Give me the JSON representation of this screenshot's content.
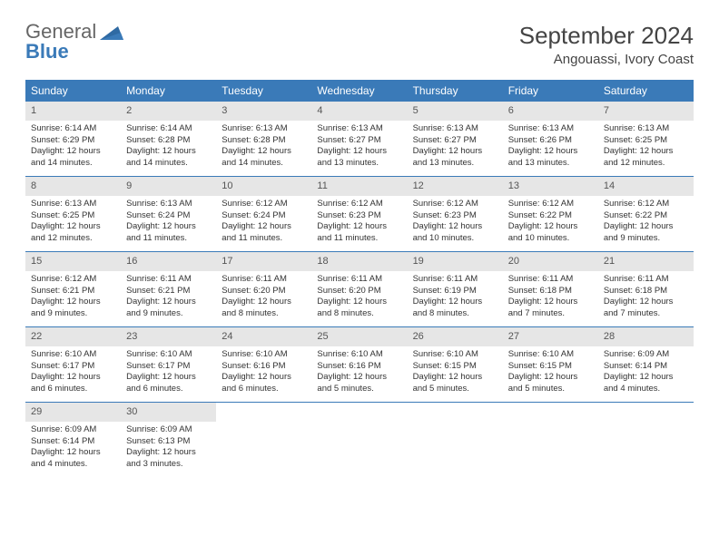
{
  "logo": {
    "text_general": "General",
    "text_blue": "Blue"
  },
  "title": "September 2024",
  "location": "Angouassi, Ivory Coast",
  "daynames": [
    "Sunday",
    "Monday",
    "Tuesday",
    "Wednesday",
    "Thursday",
    "Friday",
    "Saturday"
  ],
  "colors": {
    "header_bg": "#3a7ab8",
    "daynum_bg": "#e6e6e6",
    "rule": "#3a7ab8"
  },
  "grid": {
    "cols": 7,
    "rows": 5
  },
  "days": [
    {
      "n": 1,
      "sunrise": "6:14 AM",
      "sunset": "6:29 PM",
      "daylight": "12 hours and 14 minutes."
    },
    {
      "n": 2,
      "sunrise": "6:14 AM",
      "sunset": "6:28 PM",
      "daylight": "12 hours and 14 minutes."
    },
    {
      "n": 3,
      "sunrise": "6:13 AM",
      "sunset": "6:28 PM",
      "daylight": "12 hours and 14 minutes."
    },
    {
      "n": 4,
      "sunrise": "6:13 AM",
      "sunset": "6:27 PM",
      "daylight": "12 hours and 13 minutes."
    },
    {
      "n": 5,
      "sunrise": "6:13 AM",
      "sunset": "6:27 PM",
      "daylight": "12 hours and 13 minutes."
    },
    {
      "n": 6,
      "sunrise": "6:13 AM",
      "sunset": "6:26 PM",
      "daylight": "12 hours and 13 minutes."
    },
    {
      "n": 7,
      "sunrise": "6:13 AM",
      "sunset": "6:25 PM",
      "daylight": "12 hours and 12 minutes."
    },
    {
      "n": 8,
      "sunrise": "6:13 AM",
      "sunset": "6:25 PM",
      "daylight": "12 hours and 12 minutes."
    },
    {
      "n": 9,
      "sunrise": "6:13 AM",
      "sunset": "6:24 PM",
      "daylight": "12 hours and 11 minutes."
    },
    {
      "n": 10,
      "sunrise": "6:12 AM",
      "sunset": "6:24 PM",
      "daylight": "12 hours and 11 minutes."
    },
    {
      "n": 11,
      "sunrise": "6:12 AM",
      "sunset": "6:23 PM",
      "daylight": "12 hours and 11 minutes."
    },
    {
      "n": 12,
      "sunrise": "6:12 AM",
      "sunset": "6:23 PM",
      "daylight": "12 hours and 10 minutes."
    },
    {
      "n": 13,
      "sunrise": "6:12 AM",
      "sunset": "6:22 PM",
      "daylight": "12 hours and 10 minutes."
    },
    {
      "n": 14,
      "sunrise": "6:12 AM",
      "sunset": "6:22 PM",
      "daylight": "12 hours and 9 minutes."
    },
    {
      "n": 15,
      "sunrise": "6:12 AM",
      "sunset": "6:21 PM",
      "daylight": "12 hours and 9 minutes."
    },
    {
      "n": 16,
      "sunrise": "6:11 AM",
      "sunset": "6:21 PM",
      "daylight": "12 hours and 9 minutes."
    },
    {
      "n": 17,
      "sunrise": "6:11 AM",
      "sunset": "6:20 PM",
      "daylight": "12 hours and 8 minutes."
    },
    {
      "n": 18,
      "sunrise": "6:11 AM",
      "sunset": "6:20 PM",
      "daylight": "12 hours and 8 minutes."
    },
    {
      "n": 19,
      "sunrise": "6:11 AM",
      "sunset": "6:19 PM",
      "daylight": "12 hours and 8 minutes."
    },
    {
      "n": 20,
      "sunrise": "6:11 AM",
      "sunset": "6:18 PM",
      "daylight": "12 hours and 7 minutes."
    },
    {
      "n": 21,
      "sunrise": "6:11 AM",
      "sunset": "6:18 PM",
      "daylight": "12 hours and 7 minutes."
    },
    {
      "n": 22,
      "sunrise": "6:10 AM",
      "sunset": "6:17 PM",
      "daylight": "12 hours and 6 minutes."
    },
    {
      "n": 23,
      "sunrise": "6:10 AM",
      "sunset": "6:17 PM",
      "daylight": "12 hours and 6 minutes."
    },
    {
      "n": 24,
      "sunrise": "6:10 AM",
      "sunset": "6:16 PM",
      "daylight": "12 hours and 6 minutes."
    },
    {
      "n": 25,
      "sunrise": "6:10 AM",
      "sunset": "6:16 PM",
      "daylight": "12 hours and 5 minutes."
    },
    {
      "n": 26,
      "sunrise": "6:10 AM",
      "sunset": "6:15 PM",
      "daylight": "12 hours and 5 minutes."
    },
    {
      "n": 27,
      "sunrise": "6:10 AM",
      "sunset": "6:15 PM",
      "daylight": "12 hours and 5 minutes."
    },
    {
      "n": 28,
      "sunrise": "6:09 AM",
      "sunset": "6:14 PM",
      "daylight": "12 hours and 4 minutes."
    },
    {
      "n": 29,
      "sunrise": "6:09 AM",
      "sunset": "6:14 PM",
      "daylight": "12 hours and 4 minutes."
    },
    {
      "n": 30,
      "sunrise": "6:09 AM",
      "sunset": "6:13 PM",
      "daylight": "12 hours and 3 minutes."
    }
  ],
  "labels": {
    "sunrise": "Sunrise:",
    "sunset": "Sunset:",
    "daylight": "Daylight:"
  }
}
